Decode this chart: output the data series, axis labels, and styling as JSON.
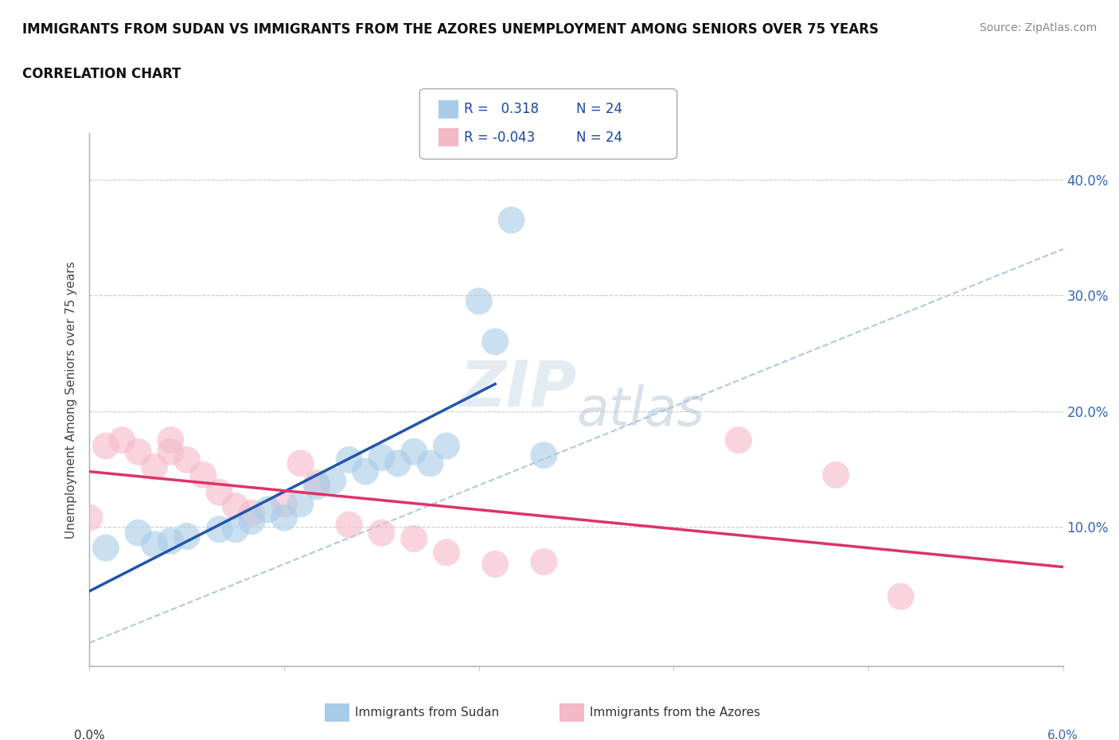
{
  "title_line1": "IMMIGRANTS FROM SUDAN VS IMMIGRANTS FROM THE AZORES UNEMPLOYMENT AMONG SENIORS OVER 75 YEARS",
  "title_line2": "CORRELATION CHART",
  "source": "Source: ZipAtlas.com",
  "ylabel": "Unemployment Among Seniors over 75 years",
  "ytick_labels": [
    "10.0%",
    "20.0%",
    "30.0%",
    "40.0%"
  ],
  "ytick_values": [
    0.1,
    0.2,
    0.3,
    0.4
  ],
  "xlim": [
    0.0,
    0.06
  ],
  "ylim": [
    -0.02,
    0.44
  ],
  "plot_ylim": [
    0.0,
    0.44
  ],
  "watermark_zip": "ZIP",
  "watermark_atlas": "atlas",
  "sudan_color": "#a8cce8",
  "azores_color": "#f5b8c8",
  "sudan_line_color": "#2255aa",
  "azores_line_color": "#dd3366",
  "dashed_line_color": "#b0c8e0",
  "sudan_scatter_x": [
    0.001,
    0.003,
    0.004,
    0.005,
    0.006,
    0.008,
    0.009,
    0.01,
    0.011,
    0.012,
    0.013,
    0.014,
    0.015,
    0.016,
    0.017,
    0.018,
    0.019,
    0.02,
    0.021,
    0.022,
    0.024,
    0.025,
    0.026,
    0.028
  ],
  "sudan_scatter_y": [
    0.082,
    0.095,
    0.085,
    0.088,
    0.092,
    0.098,
    0.098,
    0.105,
    0.115,
    0.108,
    0.12,
    0.135,
    0.14,
    0.158,
    0.148,
    0.16,
    0.155,
    0.165,
    0.155,
    0.17,
    0.295,
    0.26,
    0.365,
    0.162
  ],
  "azores_scatter_x": [
    0.0,
    0.001,
    0.002,
    0.003,
    0.004,
    0.005,
    0.005,
    0.006,
    0.007,
    0.008,
    0.009,
    0.01,
    0.012,
    0.013,
    0.014,
    0.016,
    0.018,
    0.02,
    0.022,
    0.025,
    0.028,
    0.04,
    0.046,
    0.05
  ],
  "azores_scatter_y": [
    0.108,
    0.17,
    0.175,
    0.165,
    0.152,
    0.165,
    0.175,
    0.158,
    0.145,
    0.13,
    0.118,
    0.112,
    0.12,
    0.155,
    0.138,
    0.102,
    0.095,
    0.09,
    0.078,
    0.068,
    0.07,
    0.175,
    0.145,
    0.04
  ],
  "sudan_line_x": [
    0.0,
    0.025
  ],
  "sudan_line_y": [
    0.098,
    0.2
  ],
  "azores_line_x": [
    0.0,
    0.06
  ],
  "azores_line_y": [
    0.108,
    0.098
  ],
  "dashed_line_x": [
    0.0,
    0.06
  ],
  "dashed_line_y": [
    0.0,
    0.34
  ],
  "background_color": "#ffffff",
  "grid_color": "#cccccc",
  "xtick_positions": [
    0.0,
    0.012,
    0.024,
    0.036,
    0.048,
    0.06
  ],
  "legend_r_sudan": "R =   0.318",
  "legend_n_sudan": "N = 24",
  "legend_r_azores": "R = -0.043",
  "legend_n_azores": "N = 24",
  "label_sudan": "Immigrants from Sudan",
  "label_azores": "Immigrants from the Azores"
}
